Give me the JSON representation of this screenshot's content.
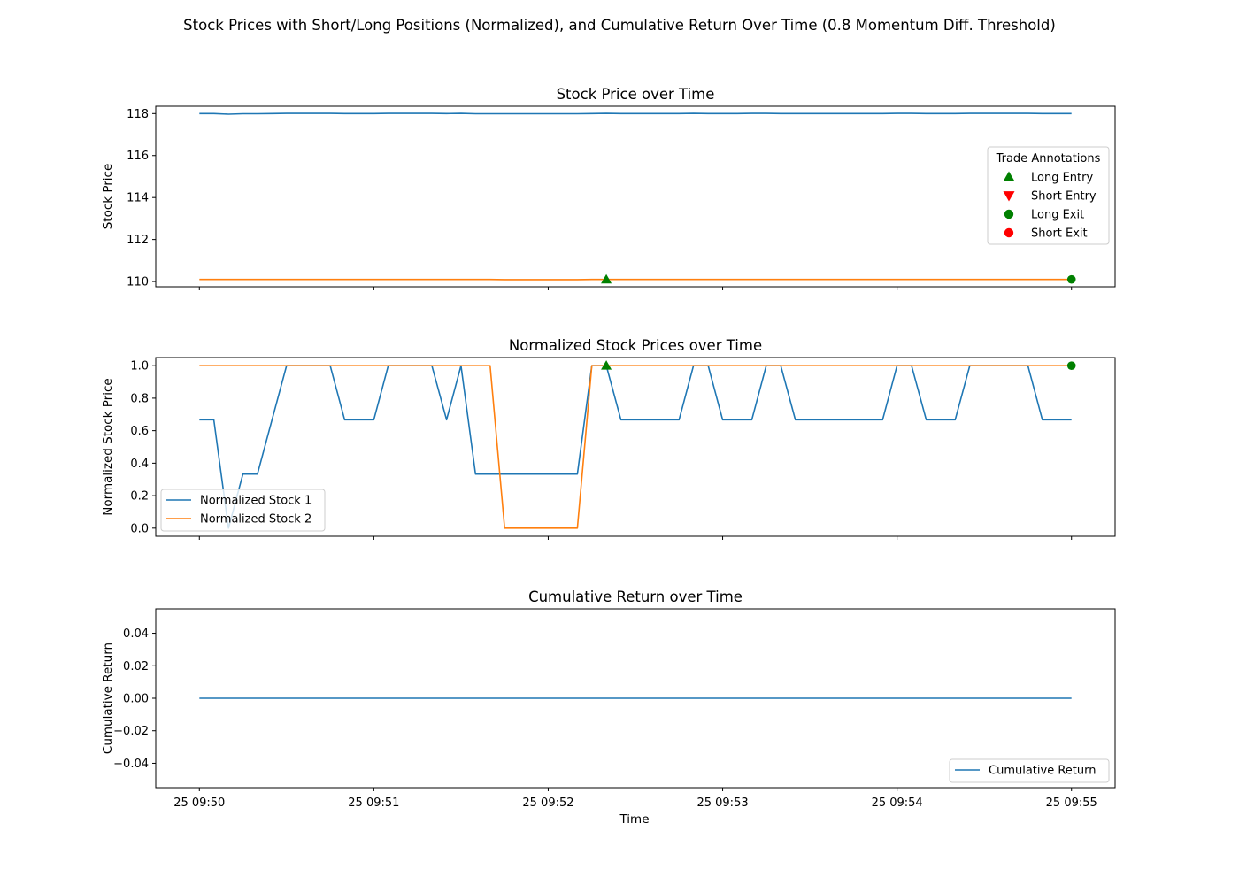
{
  "suptitle": "Stock Prices with Short/Long Positions (Normalized), and Cumulative Return Over Time (0.8 Momentum Diff. Threshold)",
  "xlabel": "Time",
  "x_tick_labels": [
    "25 09:50",
    "25 09:51",
    "25 09:52",
    "25 09:53",
    "25 09:54",
    "25 09:55"
  ],
  "colors": {
    "blue": "#1f77b4",
    "orange": "#ff7f0e",
    "green": "#008000",
    "red": "#ff0000"
  },
  "chart_data": [
    {
      "type": "line",
      "title": "Stock Price over Time",
      "ylabel": "Stock Price",
      "xlim": [
        -0.25,
        5.25
      ],
      "ylim": [
        109.75,
        118.35
      ],
      "y_ticks": [
        110,
        112,
        114,
        116,
        118
      ],
      "grid": false,
      "x": [
        0.0,
        0.083,
        0.167,
        0.25,
        0.333,
        0.417,
        0.5,
        0.583,
        0.667,
        0.75,
        0.833,
        0.917,
        1.0,
        1.083,
        1.167,
        1.25,
        1.333,
        1.417,
        1.5,
        1.583,
        1.667,
        1.75,
        1.833,
        1.917,
        2.0,
        2.083,
        2.167,
        2.25,
        2.333,
        2.417,
        2.5,
        2.583,
        2.667,
        2.75,
        2.833,
        2.917,
        3.0,
        3.083,
        3.167,
        3.25,
        3.333,
        3.417,
        3.5,
        3.583,
        3.667,
        3.75,
        3.833,
        3.917,
        4.0,
        4.083,
        4.167,
        4.25,
        4.333,
        4.417,
        4.5,
        4.583,
        4.667,
        4.75,
        4.833,
        4.917,
        5.0
      ],
      "series": [
        {
          "color": "blue",
          "values": [
            118.0,
            118.0,
            117.97,
            117.99,
            117.99,
            118.0,
            118.01,
            118.01,
            118.01,
            118.01,
            118.0,
            118.0,
            118.0,
            118.01,
            118.01,
            118.01,
            118.01,
            118.0,
            118.01,
            117.99,
            117.99,
            117.99,
            117.99,
            117.99,
            117.99,
            117.99,
            117.99,
            118.0,
            118.01,
            118.0,
            118.0,
            118.0,
            118.0,
            118.0,
            118.01,
            118.0,
            118.0,
            118.0,
            118.01,
            118.01,
            118.0,
            118.0,
            118.0,
            118.0,
            118.0,
            118.0,
            118.0,
            118.0,
            118.01,
            118.01,
            118.0,
            118.0,
            118.0,
            118.01,
            118.01,
            118.01,
            118.01,
            118.01,
            118.0,
            118.0,
            118.0
          ]
        },
        {
          "color": "orange",
          "values": [
            110.1,
            110.1,
            110.1,
            110.1,
            110.1,
            110.1,
            110.1,
            110.1,
            110.1,
            110.1,
            110.1,
            110.1,
            110.1,
            110.1,
            110.1,
            110.1,
            110.1,
            110.1,
            110.1,
            110.1,
            110.1,
            110.09,
            110.09,
            110.09,
            110.09,
            110.09,
            110.09,
            110.1,
            110.1,
            110.1,
            110.1,
            110.1,
            110.1,
            110.1,
            110.1,
            110.1,
            110.1,
            110.1,
            110.1,
            110.1,
            110.1,
            110.1,
            110.1,
            110.1,
            110.1,
            110.1,
            110.1,
            110.1,
            110.1,
            110.1,
            110.1,
            110.1,
            110.1,
            110.1,
            110.1,
            110.1,
            110.1,
            110.1,
            110.1,
            110.1,
            110.1
          ]
        }
      ],
      "markers": [
        {
          "kind": "long_entry",
          "x": 2.333,
          "y": 110.1
        },
        {
          "kind": "long_exit",
          "x": 5.0,
          "y": 110.1
        }
      ],
      "legend": {
        "title": "Trade Annotations",
        "placement": "center-right",
        "entries": [
          {
            "label": "Long Entry",
            "marker": "triangle-up",
            "color": "green"
          },
          {
            "label": "Short Entry",
            "marker": "triangle-down",
            "color": "red"
          },
          {
            "label": "Long Exit",
            "marker": "circle",
            "color": "green"
          },
          {
            "label": "Short Exit",
            "marker": "circle",
            "color": "red"
          }
        ]
      }
    },
    {
      "type": "line",
      "title": "Normalized Stock Prices over Time",
      "ylabel": "Normalized Stock Price",
      "xlim": [
        -0.25,
        5.25
      ],
      "ylim": [
        -0.05,
        1.05
      ],
      "y_ticks": [
        0.0,
        0.2,
        0.4,
        0.6,
        0.8,
        1.0
      ],
      "y_tick_labels": [
        "0.0",
        "0.2",
        "0.4",
        "0.6",
        "0.8",
        "1.0"
      ],
      "grid": false,
      "series": [
        {
          "name": "Normalized Stock 1",
          "color": "blue",
          "x": [
            0.0,
            0.083,
            0.167,
            0.25,
            0.333,
            0.5,
            0.75,
            0.833,
            1.0,
            1.083,
            1.333,
            1.417,
            1.5,
            1.583,
            2.167,
            2.25,
            2.333,
            2.417,
            2.75,
            2.833,
            2.917,
            3.0,
            3.167,
            3.25,
            3.333,
            3.417,
            3.917,
            4.0,
            4.083,
            4.167,
            4.333,
            4.417,
            4.75,
            4.833,
            5.0
          ],
          "values": [
            0.667,
            0.667,
            0.0,
            0.333,
            0.333,
            1.0,
            1.0,
            0.667,
            0.667,
            1.0,
            1.0,
            0.667,
            1.0,
            0.333,
            0.333,
            1.0,
            1.0,
            0.667,
            0.667,
            1.0,
            1.0,
            0.667,
            0.667,
            1.0,
            1.0,
            0.667,
            0.667,
            1.0,
            1.0,
            0.667,
            0.667,
            1.0,
            1.0,
            0.667,
            0.667
          ]
        },
        {
          "name": "Normalized Stock 2",
          "color": "orange",
          "x": [
            0.0,
            1.667,
            1.75,
            2.167,
            2.25,
            5.0
          ],
          "values": [
            1.0,
            1.0,
            0.0,
            0.0,
            1.0,
            1.0
          ]
        }
      ],
      "markers": [
        {
          "kind": "long_entry",
          "x": 2.333,
          "y": 1.0
        },
        {
          "kind": "long_exit",
          "x": 5.0,
          "y": 1.0
        }
      ],
      "legend": {
        "placement": "lower-left"
      }
    },
    {
      "type": "line",
      "title": "Cumulative Return over Time",
      "ylabel": "Cumulative Return",
      "xlim": [
        -0.25,
        5.25
      ],
      "ylim": [
        -0.055,
        0.055
      ],
      "y_ticks": [
        -0.04,
        -0.02,
        0.0,
        0.02,
        0.04
      ],
      "y_tick_labels": [
        "−0.04",
        "−0.02",
        "0.00",
        "0.02",
        "0.04"
      ],
      "grid": false,
      "series": [
        {
          "name": "Cumulative Return",
          "color": "blue",
          "x": [
            0.0,
            5.0
          ],
          "values": [
            0.0,
            0.0
          ]
        }
      ],
      "legend": {
        "placement": "lower-right"
      }
    }
  ]
}
